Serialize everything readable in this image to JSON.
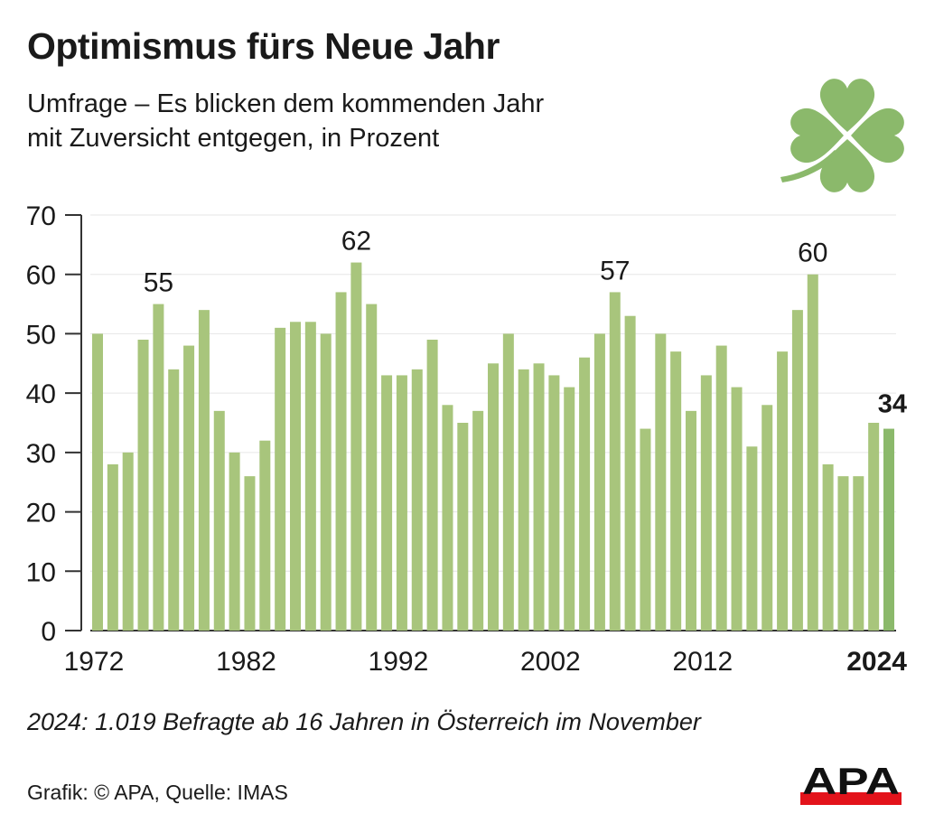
{
  "header": {
    "title": "Optimismus fürs Neue Jahr",
    "subtitle_line1": "Umfrage – Es blicken dem kommenden Jahr",
    "subtitle_line2": "mit Zuversicht entgegen, in Prozent"
  },
  "decoration": {
    "icon": "four-leaf-clover",
    "color": "#8bb96b"
  },
  "footnote": "2024: 1.019 Befragte ab 16 Jahren in Österreich im November",
  "source": "Grafik: © APA, Quelle: IMAS",
  "logo": {
    "text": "APA",
    "bar_color": "#e3131b"
  },
  "colors": {
    "bar": "#a8c57c",
    "bar_highlight": "#8bb96b",
    "text": "#1a1a1a",
    "grid": "#e6e6e6"
  },
  "chart_data": {
    "type": "bar",
    "title": "Optimismus fürs Neue Jahr",
    "subtitle": "Umfrage – Es blicken dem kommenden Jahr mit Zuversicht entgegen, in Prozent",
    "xlabel": "",
    "ylabel": "Prozent",
    "ylim": [
      0,
      70
    ],
    "yticks": [
      0,
      10,
      20,
      30,
      40,
      50,
      60,
      70
    ],
    "grid": true,
    "legend": "none",
    "x_tick_labels": [
      "1972",
      "1982",
      "1992",
      "2002",
      "2012",
      "2024"
    ],
    "categories": [
      1972,
      1973,
      1974,
      1975,
      1976,
      1977,
      1978,
      1979,
      1980,
      1981,
      1982,
      1983,
      1984,
      1985,
      1986,
      1987,
      1988,
      1989,
      1990,
      1991,
      1992,
      1993,
      1994,
      1995,
      1996,
      1997,
      1998,
      1999,
      2000,
      2001,
      2002,
      2003,
      2004,
      2005,
      2006,
      2007,
      2008,
      2009,
      2010,
      2011,
      2012,
      2013,
      2014,
      2015,
      2016,
      2017,
      2018,
      2019,
      2020,
      2021,
      2022,
      2023,
      2024
    ],
    "values": [
      50,
      28,
      30,
      49,
      55,
      44,
      48,
      54,
      37,
      30,
      26,
      32,
      51,
      52,
      52,
      50,
      57,
      62,
      55,
      43,
      43,
      44,
      49,
      38,
      35,
      37,
      45,
      50,
      44,
      45,
      43,
      41,
      46,
      50,
      57,
      53,
      34,
      50,
      47,
      37,
      43,
      48,
      41,
      31,
      38,
      47,
      54,
      60,
      28,
      26,
      26,
      35,
      34
    ],
    "annotations": [
      {
        "year": 1976,
        "label": "55"
      },
      {
        "year": 1989,
        "label": "62"
      },
      {
        "year": 2006,
        "label": "57"
      },
      {
        "year": 2019,
        "label": "60"
      },
      {
        "year": 2024,
        "label": "34",
        "bold": true
      }
    ],
    "highlight_year": 2024
  }
}
